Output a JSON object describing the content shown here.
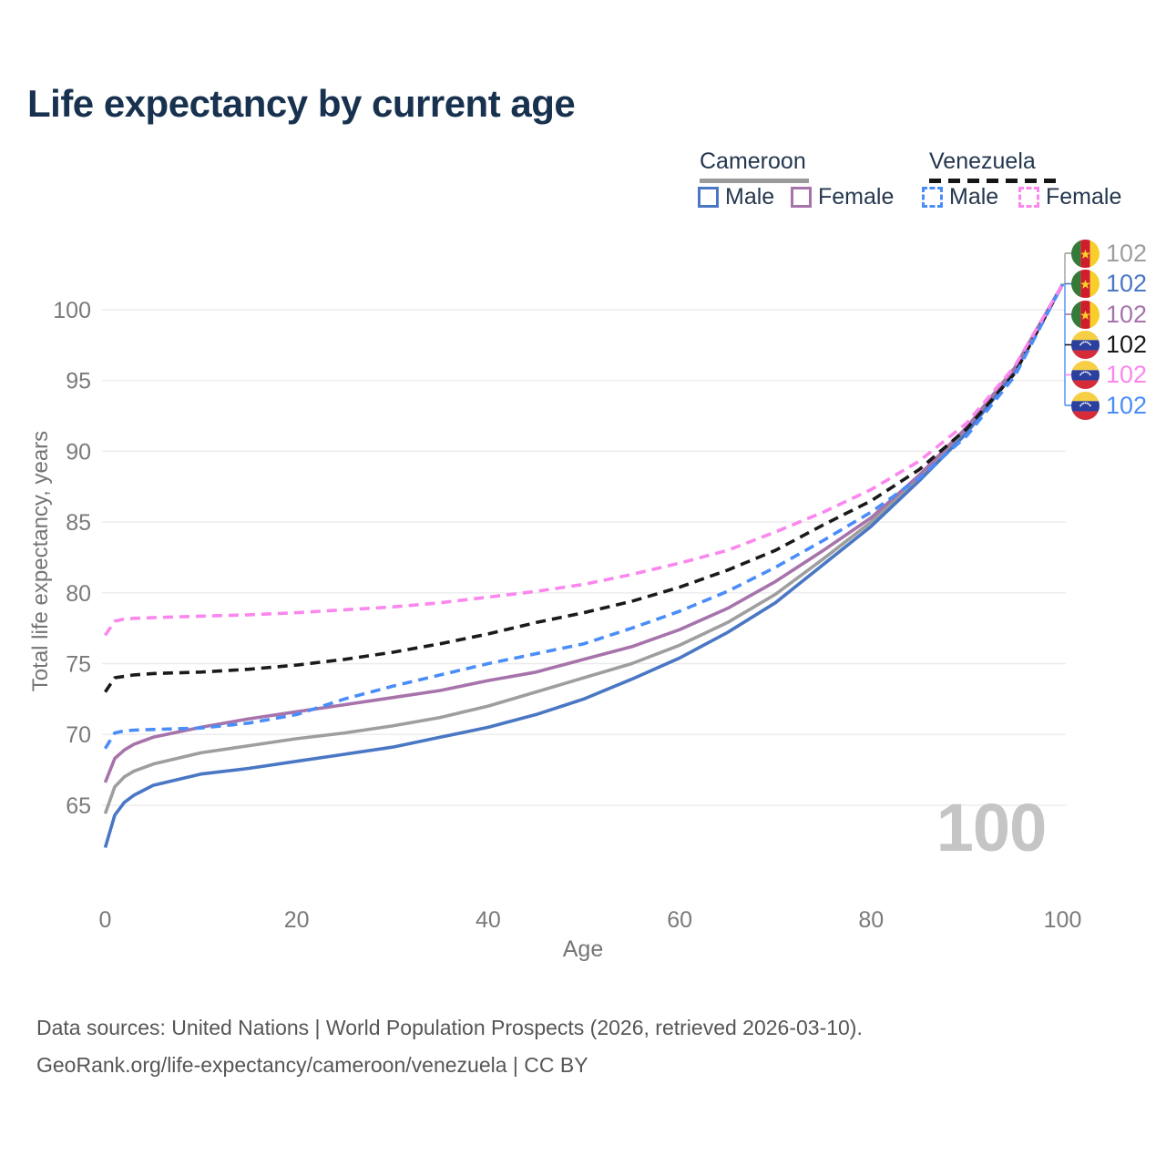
{
  "header": {
    "title": "Life expectancy by current age"
  },
  "legend": {
    "groups": [
      {
        "label": "Cameroon",
        "line_style": "solid",
        "line_color": "#9a9a9a",
        "items": [
          {
            "label": "Male",
            "color": "#4a77c4",
            "dash": false
          },
          {
            "label": "Female",
            "color": "#a773ab",
            "dash": false
          }
        ]
      },
      {
        "label": "Venezuela",
        "line_style": "dashed",
        "line_color": "#1a1a1a",
        "items": [
          {
            "label": "Male",
            "color": "#4a8df8",
            "dash": true
          },
          {
            "label": "Female",
            "color": "#fb87ee",
            "dash": true
          }
        ]
      }
    ]
  },
  "chart_data": {
    "type": "line",
    "title": "Life expectancy by current age",
    "xlabel": "Age",
    "ylabel": "Total life expectancy, years",
    "xlim": [
      0,
      100
    ],
    "ylim": [
      62,
      102
    ],
    "x_ticks": [
      0,
      20,
      40,
      60,
      80,
      100
    ],
    "y_ticks": [
      65,
      70,
      75,
      80,
      85,
      90,
      95,
      100
    ],
    "grid": "horizontal",
    "legend_position": "top-right",
    "hover_age_label": "100",
    "ages": [
      0,
      1,
      2,
      3,
      5,
      10,
      15,
      20,
      25,
      30,
      35,
      40,
      45,
      50,
      55,
      60,
      65,
      70,
      75,
      80,
      85,
      90,
      95,
      100
    ],
    "series": [
      {
        "id": "cameroon-both",
        "name": "Cameroon — Both sexes",
        "color": "#9e9e9e",
        "dash": false,
        "end_label": "102",
        "values": [
          64.4,
          66.3,
          67.0,
          67.4,
          67.9,
          68.7,
          69.2,
          69.7,
          70.1,
          70.6,
          71.2,
          72.0,
          73.0,
          74.0,
          75.0,
          76.3,
          77.9,
          79.9,
          82.4,
          85.0,
          88.1,
          91.5,
          95.8,
          101.8
        ]
      },
      {
        "id": "cameroon-male",
        "name": "Cameroon — Male",
        "color": "#4a77c4",
        "dash": false,
        "end_label": "102",
        "values": [
          62.0,
          64.3,
          65.2,
          65.7,
          66.4,
          67.2,
          67.6,
          68.1,
          68.6,
          69.1,
          69.8,
          70.5,
          71.4,
          72.5,
          73.9,
          75.4,
          77.2,
          79.3,
          82.0,
          84.7,
          87.9,
          91.3,
          95.6,
          101.8
        ]
      },
      {
        "id": "cameroon-female",
        "name": "Cameroon — Female",
        "color": "#a773ab",
        "dash": false,
        "end_label": "102",
        "values": [
          66.6,
          68.3,
          68.9,
          69.3,
          69.8,
          70.5,
          71.1,
          71.6,
          72.1,
          72.6,
          73.1,
          73.8,
          74.4,
          75.3,
          76.2,
          77.4,
          78.9,
          80.8,
          83.0,
          85.3,
          88.3,
          91.7,
          95.9,
          101.8
        ]
      },
      {
        "id": "venezuela-both",
        "name": "Venezuela — Both sexes",
        "color": "#1a1a1a",
        "dash": true,
        "end_label": "102",
        "values": [
          73.0,
          74.0,
          74.1,
          74.2,
          74.3,
          74.4,
          74.6,
          74.9,
          75.3,
          75.8,
          76.4,
          77.1,
          77.9,
          78.6,
          79.4,
          80.4,
          81.6,
          83.0,
          84.8,
          86.5,
          88.7,
          91.6,
          95.5,
          101.8
        ]
      },
      {
        "id": "venezuela-male",
        "name": "Venezuela — Male",
        "color": "#4a8df8",
        "dash": true,
        "end_label": "102",
        "values": [
          69.0,
          70.1,
          70.25,
          70.3,
          70.35,
          70.45,
          70.8,
          71.4,
          72.5,
          73.4,
          74.2,
          75.0,
          75.7,
          76.4,
          77.5,
          78.7,
          80.1,
          81.8,
          83.7,
          85.7,
          88.1,
          91.1,
          95.3,
          101.8
        ]
      },
      {
        "id": "venezuela-female",
        "name": "Venezuela — Female",
        "color": "#fb87ee",
        "dash": true,
        "end_label": "102",
        "values": [
          77.0,
          78.0,
          78.15,
          78.2,
          78.25,
          78.35,
          78.45,
          78.6,
          78.8,
          79.0,
          79.3,
          79.7,
          80.1,
          80.6,
          81.3,
          82.1,
          83.0,
          84.3,
          85.7,
          87.3,
          89.3,
          92.0,
          96.0,
          101.8
        ]
      }
    ],
    "end_labels": [
      {
        "flag": "cameroon",
        "value": "102",
        "color": "#9e9e9e",
        "series": "cameroon-both"
      },
      {
        "flag": "cameroon",
        "value": "102",
        "color": "#4a77c4",
        "series": "cameroon-male"
      },
      {
        "flag": "cameroon",
        "value": "102",
        "color": "#a773ab",
        "series": "cameroon-female"
      },
      {
        "flag": "venezuela",
        "value": "102",
        "color": "#1a1a1a",
        "series": "venezuela-both"
      },
      {
        "flag": "venezuela",
        "value": "102",
        "color": "#fb87ee",
        "series": "venezuela-female"
      },
      {
        "flag": "venezuela",
        "value": "102",
        "color": "#4a8df8",
        "series": "venezuela-male"
      }
    ]
  },
  "icons": {
    "cameroon_flag": {
      "green": "#357a38",
      "red": "#cf1d2c",
      "yellow": "#f7ce2a"
    },
    "venezuela_flag": {
      "yellow": "#f6cf45",
      "blue": "#2b3f9e",
      "red": "#d62c3a",
      "stars": "#ffffff"
    }
  },
  "watermark": {
    "value": "100"
  },
  "footer": {
    "line1": "Data sources: United Nations | World Population Prospects (2026, retrieved 2026-03-10).",
    "line2": "GeoRank.org/life-expectancy/cameroon/venezuela | CC BY"
  }
}
